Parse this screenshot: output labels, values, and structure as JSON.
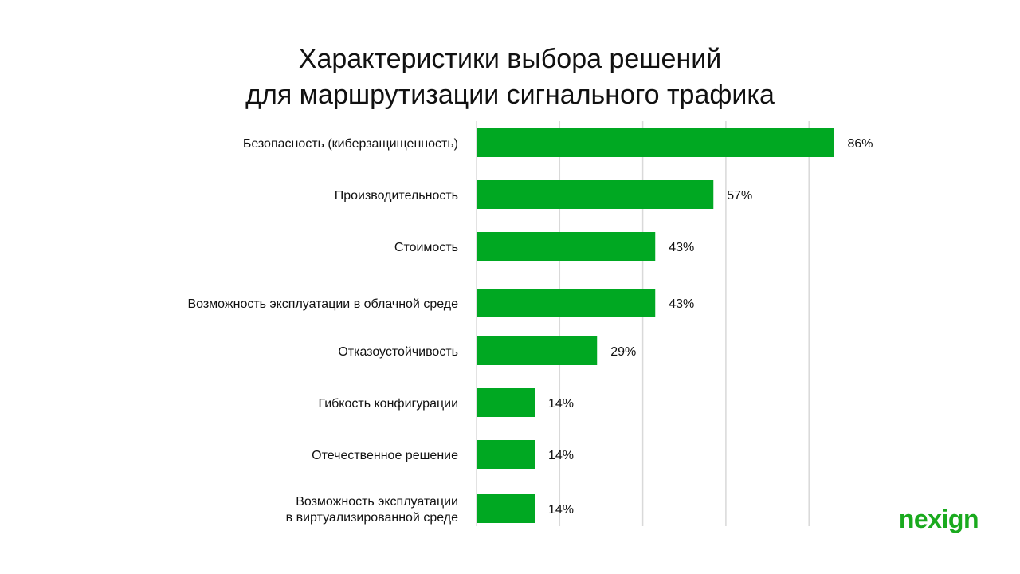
{
  "title_lines": [
    "Характеристики выбора решений",
    "для маршрутизации сигнального трафика"
  ],
  "brand": {
    "logo_text": "nexign",
    "color": "#1aaa1e"
  },
  "colors": {
    "bar": "#00a822",
    "grid": "#d9d9d9",
    "text": "#111111"
  },
  "chart_data": {
    "type": "bar",
    "orientation": "horizontal",
    "title": "Характеристики выбора решений для маршрутизации сигнального трафика",
    "categories": [
      [
        "Безопасность (киберзащищенность)"
      ],
      [
        "Производительность"
      ],
      [
        "Стоимость"
      ],
      [
        "Возможность эксплуатации в облачной среде"
      ],
      [
        "Отказоустойчивость"
      ],
      [
        "Гибкость конфигурации"
      ],
      [
        "Отечественное решение"
      ],
      [
        "Возможность эксплуатации",
        "в виртуализированной среде"
      ]
    ],
    "values": [
      86,
      57,
      43,
      43,
      29,
      14,
      14,
      14
    ],
    "value_labels": [
      "86%",
      "57%",
      "43%",
      "43%",
      "29%",
      "14%",
      "14%",
      "14%"
    ],
    "unit": "%",
    "xlim": [
      0,
      100
    ],
    "grid": true,
    "legend": "none"
  }
}
